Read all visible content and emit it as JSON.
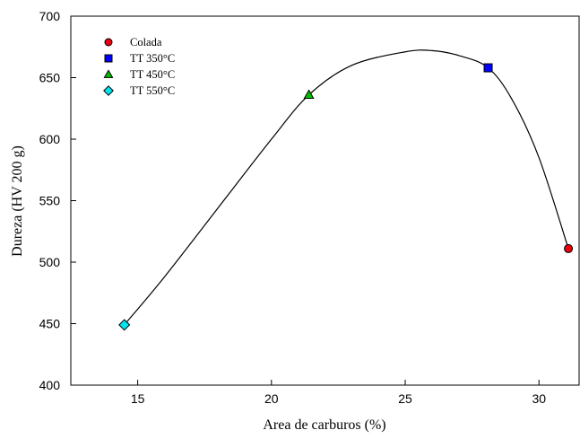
{
  "chart_data": {
    "type": "scatter",
    "xlabel": "Area de carburos (%)",
    "ylabel": "Dureza (HV 200 g)",
    "xlim": [
      12.5,
      31.5
    ],
    "ylim": [
      400,
      700
    ],
    "xticks": [
      15,
      20,
      25,
      30
    ],
    "yticks": [
      400,
      450,
      500,
      550,
      600,
      650,
      700
    ],
    "grid": false,
    "legend_position": "top-left",
    "series": [
      {
        "name": "Colada",
        "marker": "circle",
        "color": "#e8000b",
        "x": [
          31.1
        ],
        "y": [
          511
        ]
      },
      {
        "name": "TT 350°C",
        "marker": "square",
        "color": "#0000ff",
        "x": [
          28.1
        ],
        "y": [
          658
        ]
      },
      {
        "name": "TT 450°C",
        "marker": "triangle",
        "color": "#00c000",
        "x": [
          21.4
        ],
        "y": [
          636
        ]
      },
      {
        "name": "TT 550°C",
        "marker": "diamond",
        "color": "#00e5ee",
        "x": [
          14.5
        ],
        "y": [
          449
        ]
      }
    ],
    "fit_curve": {
      "x": [
        14.5,
        16,
        18,
        20,
        21.4,
        23,
        25,
        26,
        27,
        28.1,
        29,
        30,
        31.1
      ],
      "y": [
        449,
        488,
        544,
        600,
        636,
        660,
        671,
        672,
        668,
        658,
        632,
        585,
        511
      ]
    }
  }
}
